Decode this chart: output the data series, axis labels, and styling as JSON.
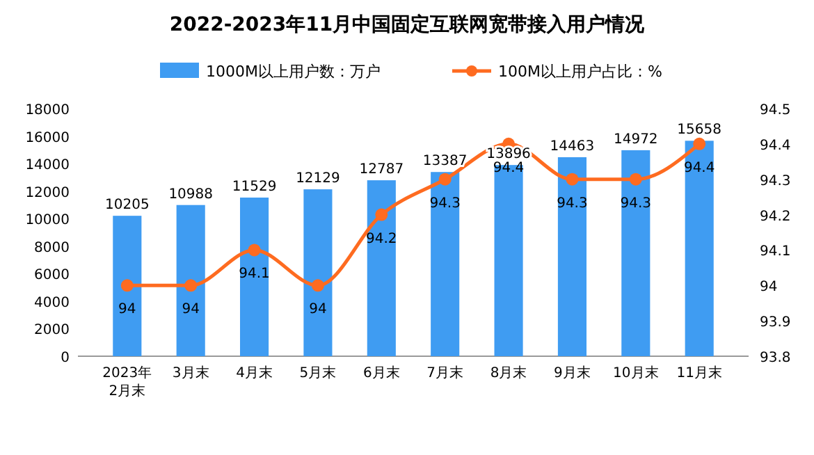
{
  "chart_data": {
    "type": "bar",
    "title": "2022-2023年11月中国固定互联网宽带接入用户情况",
    "categories": [
      "2023年\n2月末",
      "3月末",
      "4月末",
      "5月末",
      "6月末",
      "7月末",
      "8月末",
      "9月末",
      "10月末",
      "11月末"
    ],
    "series": [
      {
        "name": "1000M以上用户数：万户",
        "color": "#3f9cf2",
        "values": [
          10205,
          10988,
          11529,
          12129,
          12787,
          13387,
          13896,
          14463,
          14972,
          15658
        ]
      },
      {
        "name": "100M以上用户占比：%",
        "type": "line",
        "axis": "y2",
        "color": "#fe6b20",
        "marker": "circle",
        "values": [
          94,
          94,
          94.1,
          94,
          94.2,
          94.3,
          94.4,
          94.3,
          94.3,
          94.4
        ]
      }
    ],
    "ylim": [
      0,
      18000
    ],
    "yticks": [
      0,
      2000,
      4000,
      6000,
      8000,
      10000,
      12000,
      14000,
      16000,
      18000
    ],
    "y2lim": [
      93.8,
      94.5
    ],
    "y2ticks": [
      93.8,
      93.9,
      94,
      94.1,
      94.2,
      94.3,
      94.4,
      94.5
    ],
    "data_labels": true,
    "legend": "top",
    "grid": false
  }
}
